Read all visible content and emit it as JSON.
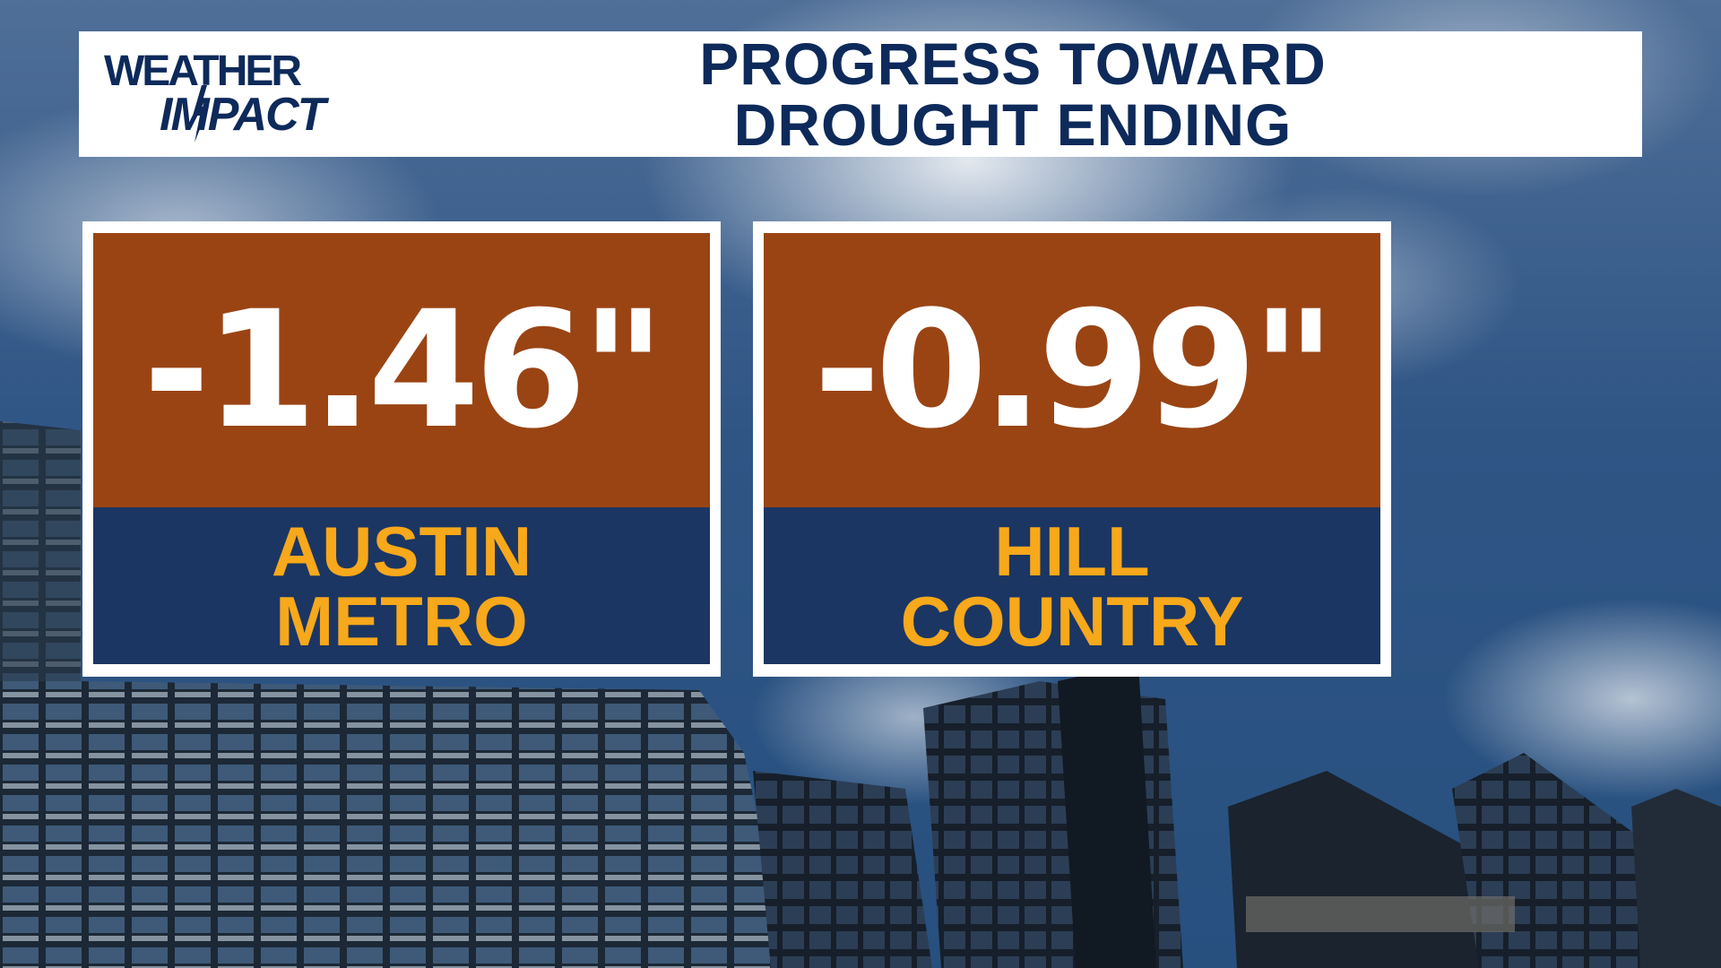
{
  "logo": {
    "line1": "WEATHER",
    "line2": "IMPACT"
  },
  "title": {
    "line1": "PROGRESS TOWARD",
    "line2": "DROUGHT ENDING"
  },
  "cards": [
    {
      "value": "-1.46\"",
      "label_line1": "AUSTIN",
      "label_line2": "METRO"
    },
    {
      "value": "-0.99\"",
      "label_line1": "HILL",
      "label_line2": "COUNTRY"
    }
  ],
  "colors": {
    "value_bg": "#9a4414",
    "label_bg": "#1b3663",
    "label_text": "#f7a81b",
    "title_text": "#0d2a5a"
  }
}
